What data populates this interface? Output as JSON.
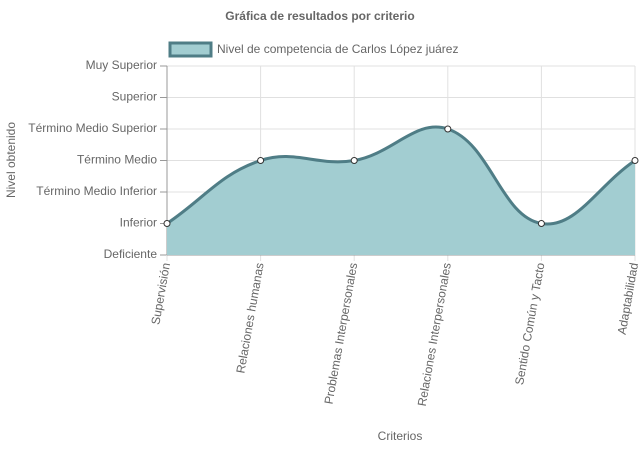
{
  "chart_data": {
    "type": "area",
    "title": "Gráfica de resultados por criterio",
    "xlabel": "Criterios",
    "ylabel": "Nivel obtenido",
    "categories": [
      "Supervisión",
      "Relaciones humanas",
      "Problemas Interpersonales",
      "Relaciones Interpersonales",
      "Sentido Común y Tacto",
      "Adaptabilidad"
    ],
    "series": [
      {
        "name": "Nivel de competencia de Carlos López juárez",
        "color": "#4f7d86",
        "fill": "#a2cdd1",
        "values": [
          1,
          3,
          3,
          4,
          1,
          3
        ]
      }
    ],
    "ylim": [
      0,
      6
    ],
    "yticks": [
      {
        "value": 0,
        "label": "Deficiente"
      },
      {
        "value": 1,
        "label": "Inferior"
      },
      {
        "value": 2,
        "label": "Término Medio Inferior"
      },
      {
        "value": 3,
        "label": "Término Medio"
      },
      {
        "value": 4,
        "label": "Término Medio Superior"
      },
      {
        "value": 5,
        "label": "Superior"
      },
      {
        "value": 6,
        "label": "Muy Superior"
      }
    ],
    "grid": true
  }
}
